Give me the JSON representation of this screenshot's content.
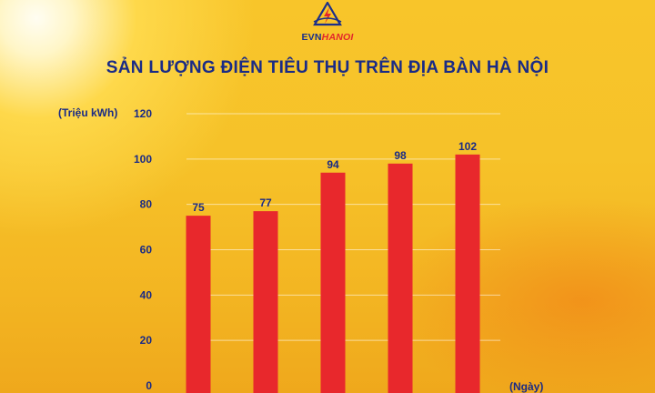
{
  "logo": {
    "brand_evn": "EVN",
    "brand_hanoi": "HANOI"
  },
  "chart_data": {
    "type": "bar",
    "title": "SẢN LƯỢNG ĐIỆN TIÊU THỤ TRÊN ĐỊA BÀN HÀ NỘI",
    "ylabel": "(Triệu kWh)",
    "xlabel": "(Ngày)",
    "categories": [
      "",
      "",
      "",
      "",
      ""
    ],
    "values": [
      75,
      77,
      94,
      98,
      102
    ],
    "ylim": [
      0,
      120
    ],
    "yticks": [
      0,
      20,
      40,
      60,
      80,
      100,
      120
    ],
    "grid": true,
    "bar_color": "#e8282c",
    "label_color": "#1a2b86"
  }
}
